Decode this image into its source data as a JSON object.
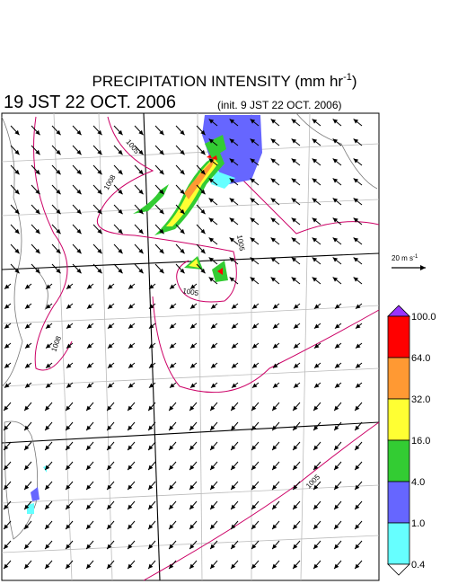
{
  "title": {
    "text": "PRECIPITATION INTENSITY (mm hr",
    "exponent": "-1",
    "close": ")"
  },
  "valid_time": "19 JST 22 OCT. 2006",
  "init_time": "(init. 9 JST 22 OCT. 2006)",
  "wind_scale": {
    "text": "20 m s",
    "exponent": "-1"
  },
  "colorbar": {
    "levels": [
      "100.0",
      "64.0",
      "32.0",
      "16.0",
      "4.0",
      "1.0",
      "0.4"
    ],
    "colors": [
      "#ff0000",
      "#ff9933",
      "#ffff33",
      "#33cc33",
      "#6666ff",
      "#66ffff"
    ],
    "over_color": "#9933ff",
    "under_color": "#ffffff"
  },
  "isobar_labels": [
    "1005",
    "1008",
    "1005",
    "1005",
    "1008",
    "1005"
  ]
}
